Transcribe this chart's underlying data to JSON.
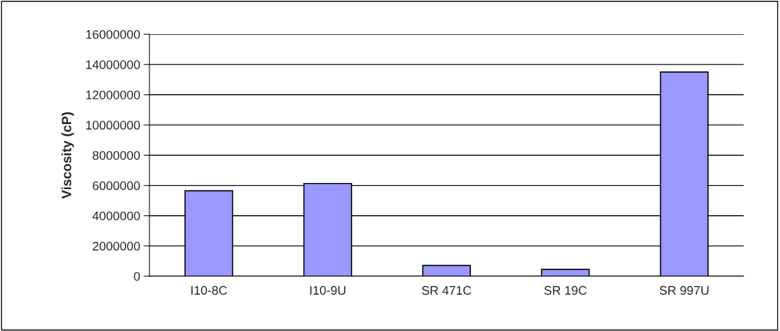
{
  "chart_data": {
    "type": "bar",
    "ylabel": "Viscosity (cP)",
    "categories": [
      "I10-8C",
      "I10-9U",
      "SR 471C",
      "SR 19C",
      "SR 997U"
    ],
    "values": [
      5650000,
      6130000,
      710000,
      450000,
      13500000
    ],
    "color": "#9999ff",
    "ylim": [
      0,
      16000000
    ],
    "yticks": [
      0,
      2000000,
      4000000,
      6000000,
      8000000,
      10000000,
      12000000,
      14000000,
      16000000
    ],
    "grid": "y"
  }
}
